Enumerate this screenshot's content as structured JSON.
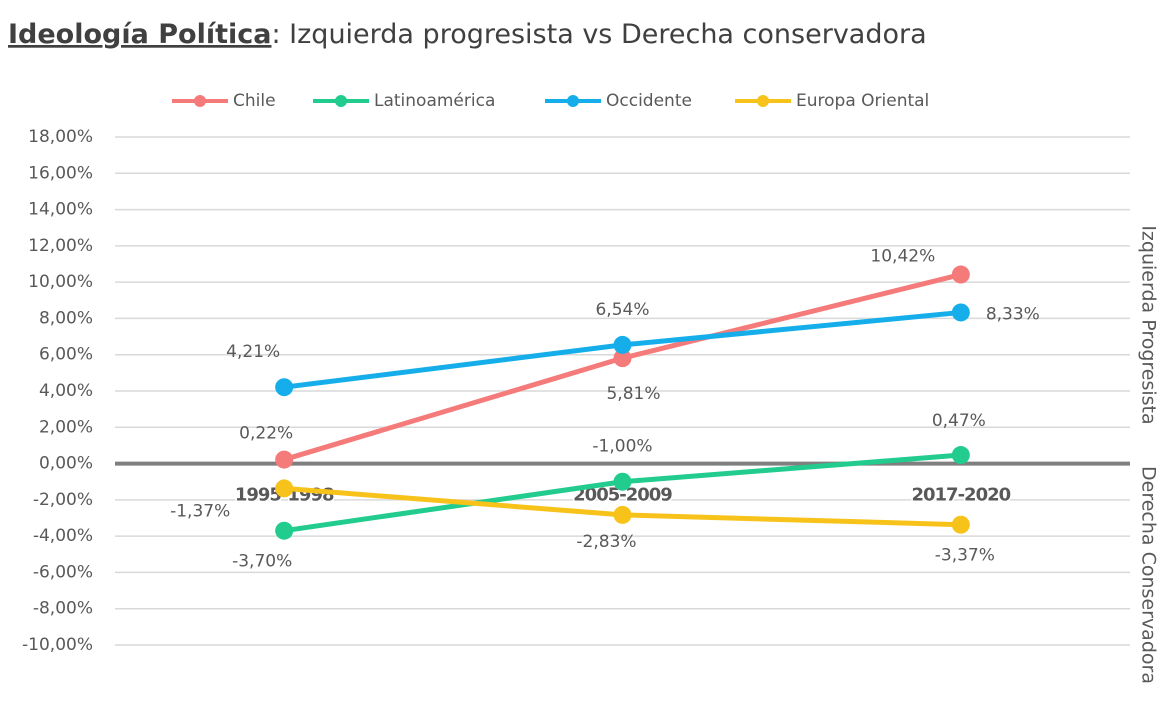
{
  "chart_data": {
    "type": "line",
    "title": "Ideología Política",
    "subtitle": ": Izquierda progresista vs Derecha conservadora",
    "categories": [
      "1995-1998",
      "2005-2009",
      "2017-2020"
    ],
    "series": [
      {
        "name": "Chile",
        "color": "#f57b7b",
        "label_color": "#e35a5a",
        "values": [
          0.22,
          5.81,
          10.42
        ],
        "value_labels": [
          "0,22%",
          "5,81%",
          "10,42%"
        ]
      },
      {
        "name": "Latinoamérica",
        "color": "#22cc8e",
        "label_color": "#1fbd86",
        "values": [
          -3.7,
          -1.0,
          0.47
        ],
        "value_labels": [
          "-3,70%",
          "-1,00%",
          "0,47%"
        ]
      },
      {
        "name": "Occidente",
        "color": "#16aeea",
        "label_color": "#2f7cc0",
        "values": [
          4.21,
          6.54,
          8.33
        ],
        "value_labels": [
          "4,21%",
          "6,54%",
          "8,33%"
        ]
      },
      {
        "name": "Europa Oriental",
        "color": "#f7c31b",
        "label_color": "#efb800",
        "values": [
          -1.37,
          -2.83,
          -3.37
        ],
        "value_labels": [
          "-1,37%",
          "-2,83%",
          "-3,37%"
        ]
      }
    ],
    "ylim": [
      -10,
      18
    ],
    "yticks": [
      {
        "value": -10,
        "label": "-10,00%"
      },
      {
        "value": -8,
        "label": "-8,00%"
      },
      {
        "value": -6,
        "label": "-6,00%"
      },
      {
        "value": -4,
        "label": "-4,00%"
      },
      {
        "value": -2,
        "label": "-2,00%"
      },
      {
        "value": 0,
        "label": "0,00%"
      },
      {
        "value": 2,
        "label": "2,00%"
      },
      {
        "value": 4,
        "label": "4,00%"
      },
      {
        "value": 6,
        "label": "6,00%"
      },
      {
        "value": 8,
        "label": "8,00%"
      },
      {
        "value": 10,
        "label": "10,00%"
      },
      {
        "value": 12,
        "label": "12,00%"
      },
      {
        "value": 14,
        "label": "14,00%"
      },
      {
        "value": 16,
        "label": "16,00%"
      },
      {
        "value": 18,
        "label": "18,00%"
      }
    ],
    "grid": true,
    "legend": "top",
    "annotations": [
      "Izquierda Progresista",
      "Derecha Conservadora"
    ]
  }
}
